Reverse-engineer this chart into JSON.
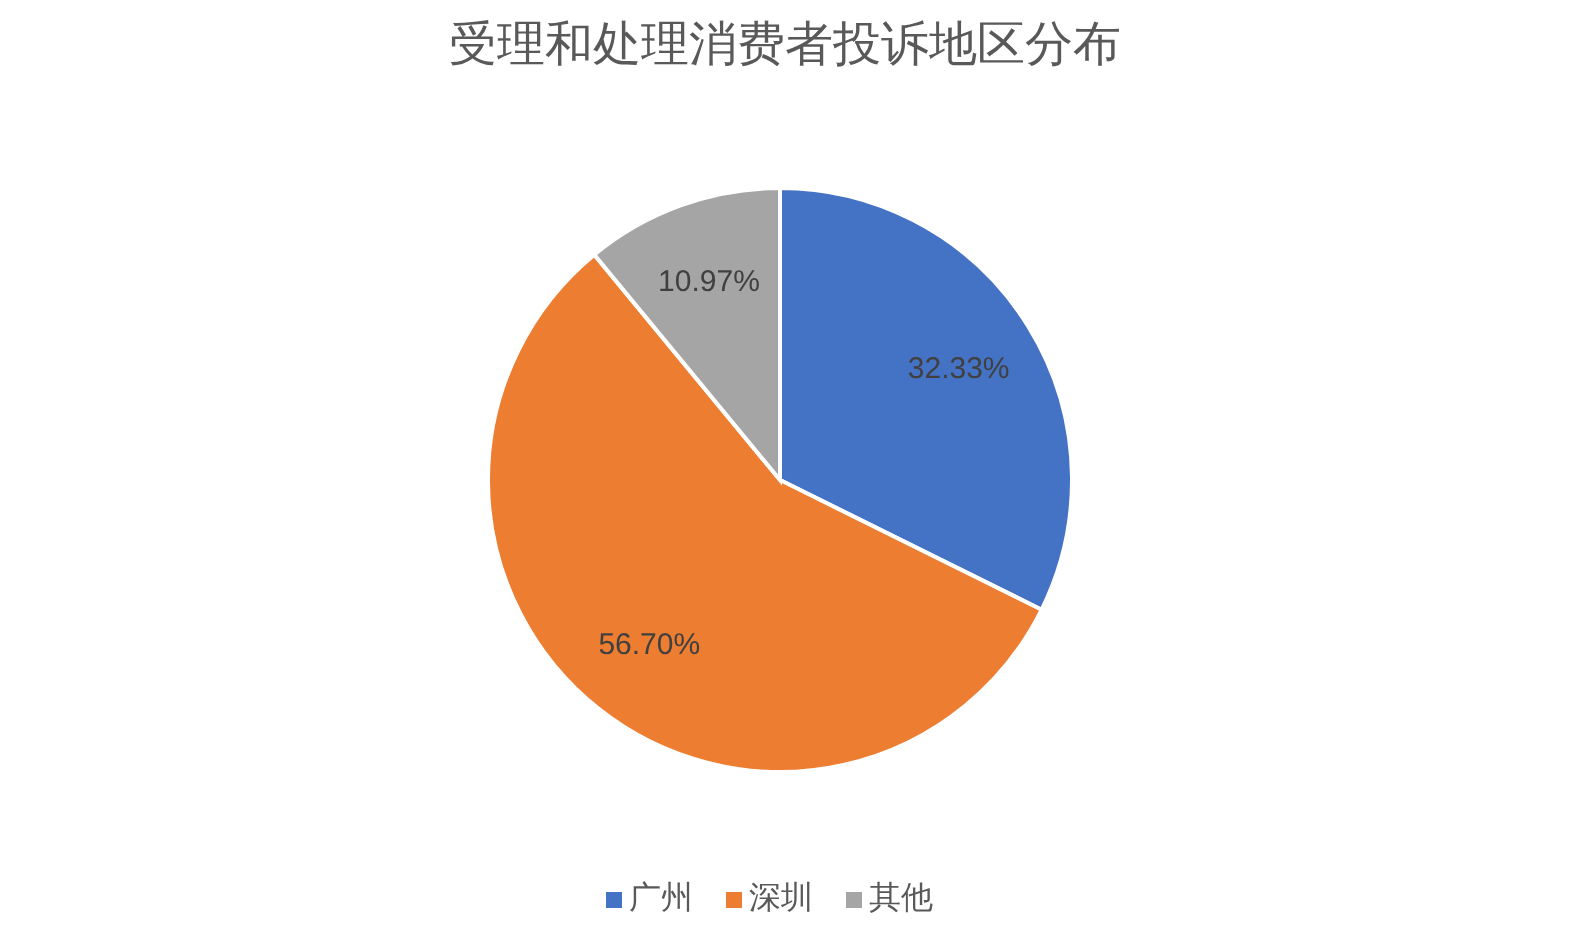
{
  "chart_data": {
    "type": "pie",
    "title": "受理和处理消费者投诉地区分布",
    "categories": [
      "广州",
      "深圳",
      "其他"
    ],
    "values": [
      32.33,
      56.7,
      10.97
    ],
    "colors": [
      "#4472c4",
      "#ed7d31",
      "#a5a5a5"
    ],
    "value_labels": [
      "32.33%",
      "56.70%",
      "10.97%"
    ],
    "legend": "bottom"
  }
}
